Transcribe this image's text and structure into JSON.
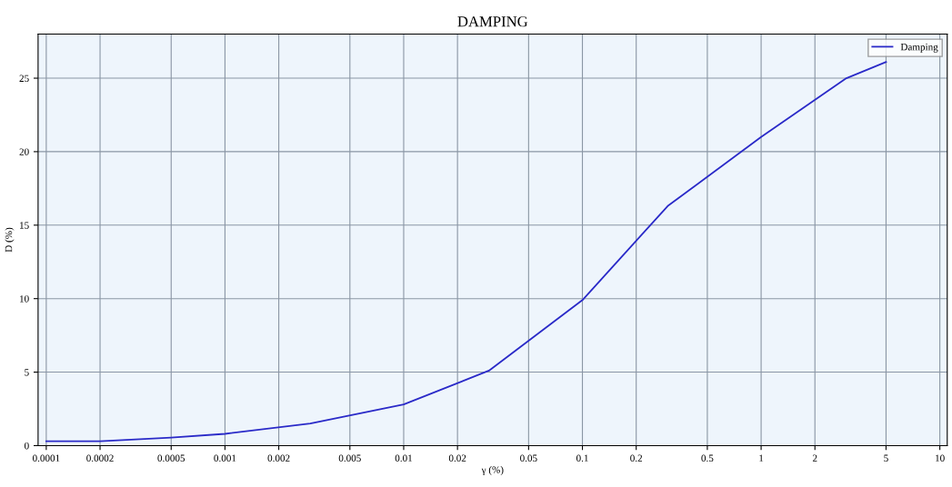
{
  "chart_data": {
    "type": "line",
    "title": "DAMPING",
    "xlabel": "γ (%)",
    "ylabel": "D (%)",
    "log": "x",
    "x": [
      0.0001,
      0.0002,
      0.0005,
      0.001,
      0.003,
      0.01,
      0.03,
      0.1,
      0.3,
      1,
      3,
      5
    ],
    "series": [
      {
        "name": "Damping",
        "color": "#2a2ac8",
        "values": [
          0.3,
          0.3,
          0.55,
          0.8,
          1.5,
          2.8,
          5.1,
          9.9,
          16.3,
          21.0,
          25.0,
          26.1
        ]
      }
    ],
    "xlim": [
      9e-05,
      11
    ],
    "ylim": [
      0,
      28
    ],
    "xticks": [
      0.0001,
      0.0002,
      0.0005,
      0.001,
      0.002,
      0.005,
      0.01,
      0.02,
      0.05,
      0.1,
      0.2,
      0.5,
      1,
      2,
      5,
      10
    ],
    "yticks": [
      0,
      5,
      10,
      15,
      20,
      25
    ],
    "grid": true,
    "legend": "top right",
    "marker": "none",
    "line_style": "solid"
  }
}
